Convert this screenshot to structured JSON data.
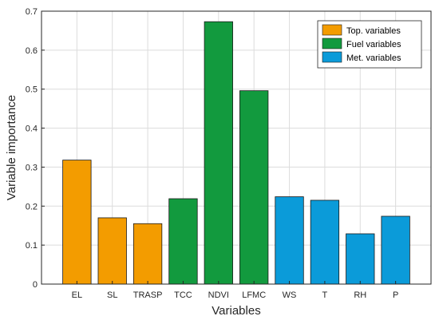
{
  "chart_data": {
    "type": "bar",
    "categories": [
      "EL",
      "SL",
      "TRASP",
      "TCC",
      "NDVI",
      "LFMC",
      "WS",
      "T",
      "RH",
      "P"
    ],
    "values": [
      0.318,
      0.17,
      0.155,
      0.219,
      0.673,
      0.496,
      0.224,
      0.215,
      0.129,
      0.174
    ],
    "groups": [
      "Top. variables",
      "Top. variables",
      "Top. variables",
      "Fuel variables",
      "Fuel variables",
      "Fuel variables",
      "Met. variables",
      "Met. variables",
      "Met. variables",
      "Met. variables"
    ],
    "xlabel": "Variables",
    "ylabel": "Variable importance",
    "ylim": [
      0,
      0.7
    ],
    "yticks": [
      0,
      0.1,
      0.2,
      0.3,
      0.4,
      0.5,
      0.6,
      0.7
    ],
    "ytick_labels": [
      "0",
      "0.1",
      "0.2",
      "0.3",
      "0.4",
      "0.5",
      "0.6",
      "0.7"
    ],
    "grid": true,
    "legend_position": "top-right",
    "legend": [
      {
        "name": "Top. variables",
        "color": "#F39C00"
      },
      {
        "name": "Fuel variables",
        "color": "#129A3E"
      },
      {
        "name": "Met. variables",
        "color": "#0B9BD9"
      }
    ]
  }
}
